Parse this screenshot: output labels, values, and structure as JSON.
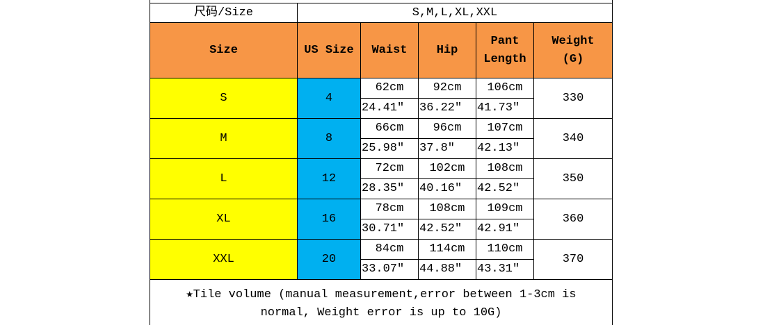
{
  "size_row": {
    "label": "尺码/Size",
    "value": "S,M,L,XL,XXL"
  },
  "table": {
    "headers": [
      "Size",
      "US Size",
      "Waist",
      "Hip",
      "Pant Length",
      "Weight (G)"
    ],
    "rows": [
      {
        "size": "S",
        "us": "4",
        "waist_cm": "62cm",
        "hip_cm": "92cm",
        "pant_cm": "106cm",
        "waist_in": "24.41″",
        "hip_in": "36.22″",
        "pant_in": "41.73″",
        "weight": "330"
      },
      {
        "size": "M",
        "us": "8",
        "waist_cm": "66cm",
        "hip_cm": "96cm",
        "pant_cm": "107cm",
        "waist_in": "25.98″",
        "hip_in": "37.8″",
        "pant_in": "42.13″",
        "weight": "340"
      },
      {
        "size": "L",
        "us": "12",
        "waist_cm": "72cm",
        "hip_cm": "102cm",
        "pant_cm": "108cm",
        "waist_in": "28.35″",
        "hip_in": "40.16″",
        "pant_in": "42.52″",
        "weight": "350"
      },
      {
        "size": "XL",
        "us": "16",
        "waist_cm": "78cm",
        "hip_cm": "108cm",
        "pant_cm": "109cm",
        "waist_in": "30.71″",
        "hip_in": "42.52″",
        "pant_in": "42.91″",
        "weight": "360"
      },
      {
        "size": "XXL",
        "us": "20",
        "waist_cm": "84cm",
        "hip_cm": "114cm",
        "pant_cm": "110cm",
        "waist_in": "33.07″",
        "hip_in": "44.88″",
        "pant_in": "43.31″",
        "weight": "370"
      }
    ]
  },
  "footer": "★Tile volume (manual measurement,error between 1-3cm is normal, Weight error is up to 10G)"
}
